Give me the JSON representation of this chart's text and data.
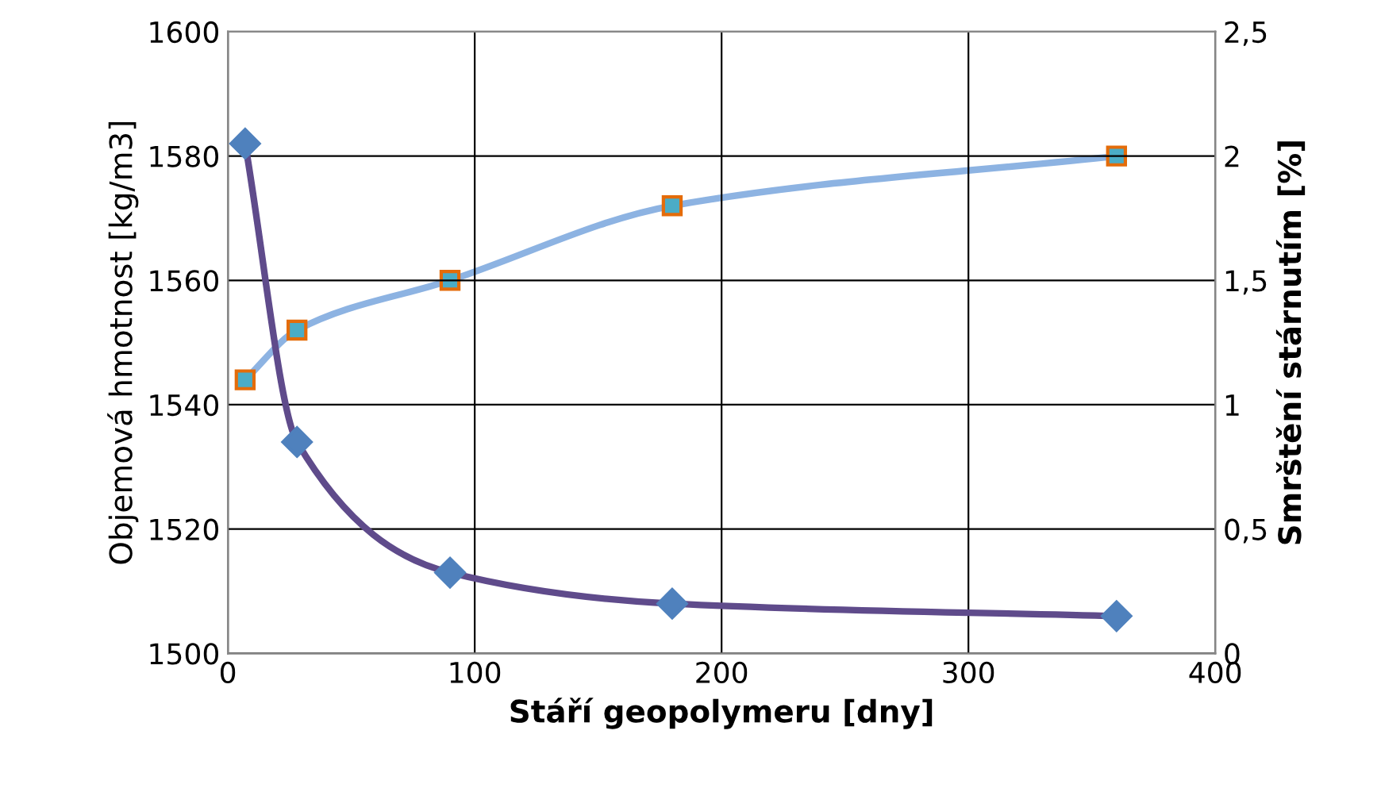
{
  "chart_data": {
    "type": "line",
    "xlabel": "Stáří geopolymeru [dny]",
    "ylabel": "Objemová hmotnost [kg/m3]",
    "y2label": "Smrštění stárnutím [%]",
    "x": [
      7,
      28,
      90,
      180,
      360
    ],
    "series": [
      {
        "color": "#5f4b8b",
        "marker": "diamond",
        "values": [
          1582,
          1534,
          1513,
          1508,
          1506
        ]
      },
      {
        "color": "#8db3e2",
        "marker": "square",
        "axis": "y2",
        "values": [
          1.1,
          1.3,
          1.5,
          1.8,
          2.0
        ]
      }
    ],
    "xlim": [
      0,
      400
    ],
    "xticks": [
      0,
      100,
      200,
      300,
      400
    ],
    "ylim": [
      1500,
      1600
    ],
    "yticks": [
      1500,
      1520,
      1540,
      1560,
      1580,
      1600
    ],
    "y2lim": [
      0,
      2.5
    ],
    "y2ticks": [
      0,
      {
        "value": 0.5,
        "label": "0,5"
      },
      1,
      {
        "value": 1.5,
        "label": "1,5"
      },
      2,
      {
        "value": 2.5,
        "label": "2,5"
      }
    ],
    "grid": true,
    "line_style": "solid"
  }
}
